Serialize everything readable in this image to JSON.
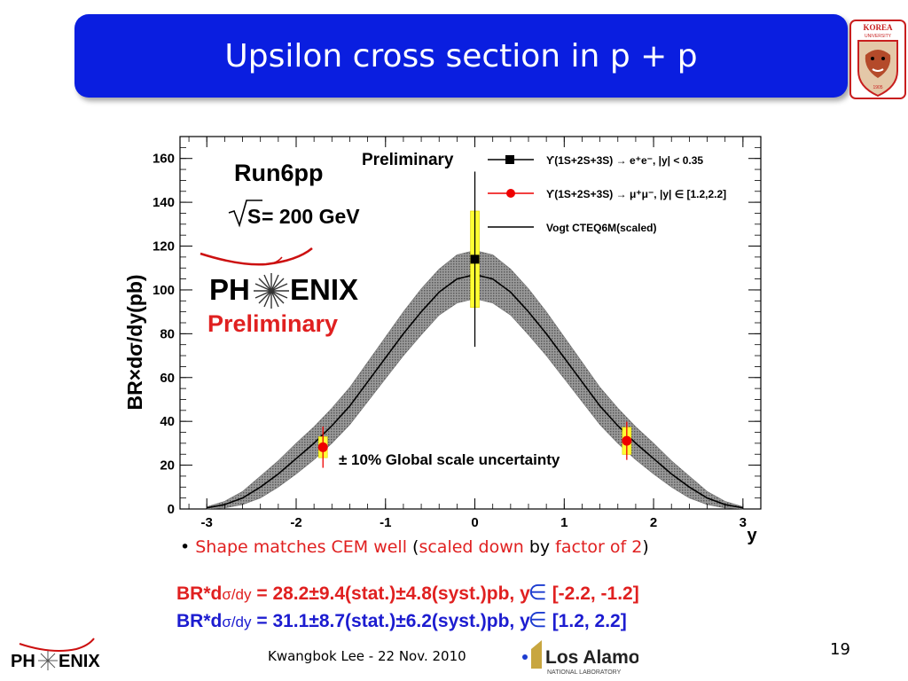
{
  "slide": {
    "title": "Upsilon cross section in p + p",
    "page_number": "19",
    "footer": "Kwangbok Lee - 22 Nov. 2010",
    "logos": {
      "korea_top": "KOREA",
      "korea_bottom": "UNIVERSITY",
      "korea_year": "1905",
      "los_alamos": "Los Alamos",
      "los_alamos_sub": "NATIONAL LABORATORY",
      "phenix_ph": "PH",
      "phenix_enix": "ENIX"
    },
    "bullet": {
      "part1": "Shape matches CEM well",
      "part2": " (",
      "part3": "scaled down",
      "part4": " by ",
      "part5": "factor of 2",
      "part6": ")"
    },
    "results": [
      {
        "label": "BR*d",
        "unit": "σ/dy",
        "value": " = 28.2±9.4(stat.)±4.8(syst.)pb, y",
        "range": "[-2.2, -1.2]"
      },
      {
        "label": "BR*d",
        "unit": "σ/dy",
        "value": " = 31.1±8.7(stat.)±6.2(syst.)pb, y",
        "range": "[1.2, 2.2]"
      }
    ],
    "colors": {
      "title_bar": "#0a1ee0",
      "red_text": "#e02020",
      "blue_text": "#1c1cd0",
      "band": "#8a8a8a",
      "syst_box": "#ffff33"
    }
  },
  "chart_data": {
    "type": "scatter",
    "ylabel": "BR×dσ/dy(pb)",
    "xlabel": "y",
    "xlim": [
      -3.3,
      3.2
    ],
    "ylim": [
      0,
      170
    ],
    "x_ticks": [
      "-3",
      "-2",
      "-1",
      "0",
      "1",
      "2",
      "3"
    ],
    "y_ticks": [
      "0",
      "20",
      "40",
      "60",
      "80",
      "100",
      "120",
      "140",
      "160"
    ],
    "annotations": {
      "run": "Run6pp",
      "energy_sqrt": "S",
      "energy_rest": " = 200 GeV",
      "preliminary_top": "Preliminary",
      "phenix_ph": "PH",
      "phenix_enix": "ENIX",
      "phenix_preliminary": "Preliminary",
      "global": "± 10% Global scale uncertainty"
    },
    "legend": [
      {
        "label": "ϒ(1S+2S+3S) → e⁺e⁻, |y| < 0.35",
        "marker": "square",
        "color": "#000000"
      },
      {
        "label": "ϒ(1S+2S+3S) → μ⁺μ⁻, |y| ∈ [1.2,2.2]",
        "marker": "circle",
        "color": "#ee0000"
      },
      {
        "label": "Vogt CTEQ6M(scaled)",
        "marker": "line",
        "color": "#000000"
      }
    ],
    "series": [
      {
        "name": "ϒ(1S+2S+3S) → e⁺e⁻, |y| < 0.35",
        "points": [
          {
            "x": 0.0,
            "y": 114,
            "stat_err": 40,
            "syst_err": 22
          }
        ]
      },
      {
        "name": "ϒ(1S+2S+3S) → μ⁺μ⁻, |y| ∈ [1.2,2.2]",
        "points": [
          {
            "x": -1.7,
            "y": 28.2,
            "stat_err": 9.4,
            "syst_err": 4.8
          },
          {
            "x": 1.7,
            "y": 31.1,
            "stat_err": 8.7,
            "syst_err": 6.2
          }
        ]
      },
      {
        "name": "Vogt CTEQ6M(scaled)",
        "x": [
          -3.0,
          -2.8,
          -2.6,
          -2.4,
          -2.2,
          -2.0,
          -1.8,
          -1.6,
          -1.4,
          -1.2,
          -1.0,
          -0.8,
          -0.6,
          -0.4,
          -0.2,
          0.0,
          0.2,
          0.4,
          0.6,
          0.8,
          1.0,
          1.2,
          1.4,
          1.6,
          1.8,
          2.0,
          2.2,
          2.4,
          2.6,
          2.8,
          3.0
        ],
        "y": [
          0.5,
          2,
          5,
          10,
          16,
          23,
          30,
          38,
          47,
          58,
          69,
          80,
          90,
          99,
          105,
          107,
          105,
          99,
          90,
          80,
          69,
          58,
          47,
          38,
          30,
          23,
          16,
          10,
          5,
          2,
          0.5
        ],
        "band_halfwidth": [
          0.5,
          1.5,
          3,
          5,
          6,
          7,
          7.5,
          8,
          8.5,
          9,
          9.5,
          10,
          10.5,
          10.5,
          11,
          11,
          11,
          10.5,
          10.5,
          10,
          9.5,
          9,
          8.5,
          8,
          7.5,
          7,
          6,
          5,
          3,
          1.5,
          0.5
        ]
      }
    ]
  }
}
